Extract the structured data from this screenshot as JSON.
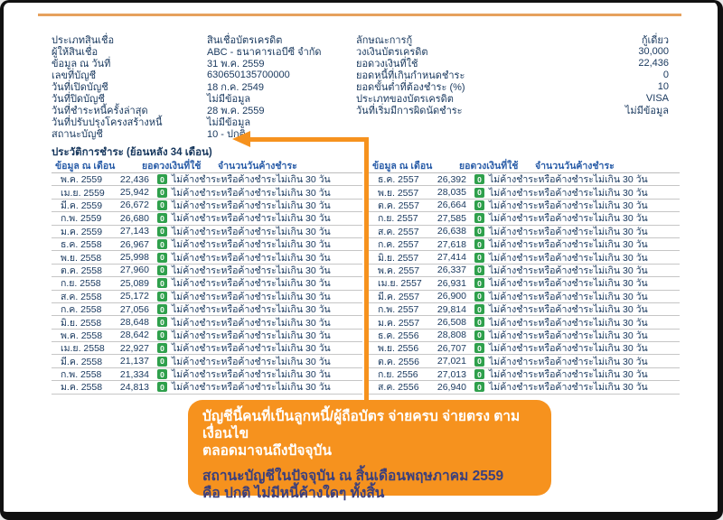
{
  "colors": {
    "accent_orange": "#F6921E",
    "rule_tan": "#E6A15D",
    "badge_green": "#2FA04C",
    "text_navy": "#17375D",
    "header_blue": "#2A5DA8",
    "callout_text_dark": "#3A3F7D"
  },
  "account_fields": {
    "left": [
      {
        "label": "ประเภทสินเชื่อ",
        "value": "สินเชื่อบัตรเครดิต"
      },
      {
        "label": "ผู้ให้สินเชื่อ",
        "value": "ABC - ธนาคารเอบีซี จำกัด"
      },
      {
        "label": "ข้อมูล ณ วันที่",
        "value": "31 พ.ค. 2559"
      },
      {
        "label": "เลขที่บัญชี",
        "value": "630650135700000"
      },
      {
        "label": "วันที่เปิดบัญชี",
        "value": "18 ก.ค. 2549"
      },
      {
        "label": "วันที่ปิดบัญชี",
        "value": "ไม่มีข้อมูล"
      },
      {
        "label": "วันที่ชำระหนี้ครั้งล่าสุด",
        "value": "28 พ.ค. 2559"
      },
      {
        "label": "วันที่ปรับปรุงโครงสร้างหนี้",
        "value": "ไม่มีข้อมูล"
      },
      {
        "label": "สถานะบัญชี",
        "value": "10 - ปกติ"
      }
    ],
    "right": [
      {
        "label": "ลักษณะการกู้",
        "value": "กู้เดี่ยว"
      },
      {
        "label": "วงเงินบัตรเครดิต",
        "value": "30,000"
      },
      {
        "label": "ยอดวงเงินที่ใช้",
        "value": "22,436"
      },
      {
        "label": "ยอดหนี้ที่เกินกำหนดชำระ",
        "value": "0"
      },
      {
        "label": "ยอดขั้นต่ำที่ต้องชำระ (%)",
        "value": "10"
      },
      {
        "label": "ประเภทของบัตรเครดิต",
        "value": "VISA"
      },
      {
        "label": "วันที่เริ่มมีการผิดนัดชำระ",
        "value": "ไม่มีข้อมูล"
      }
    ]
  },
  "history": {
    "title": "ประวัติการชำระ (ย้อนหลัง 34 เดือน)",
    "columns": [
      "ข้อมูล ณ เดือน",
      "ยอดวงเงินที่ใช้",
      "จำนวนวันค้างชำระ"
    ],
    "status_badge": "0",
    "status_text": "ไม่ค้างชำระหรือค้างชำระไม่เกิน 30 วัน",
    "left_rows": [
      {
        "month": "พ.ค. 2559",
        "amount": "22,436"
      },
      {
        "month": "เม.ย. 2559",
        "amount": "25,942"
      },
      {
        "month": "มี.ค. 2559",
        "amount": "26,672"
      },
      {
        "month": "ก.พ. 2559",
        "amount": "26,680"
      },
      {
        "month": "ม.ค. 2559",
        "amount": "27,143"
      },
      {
        "month": "ธ.ค. 2558",
        "amount": "26,967"
      },
      {
        "month": "พ.ย. 2558",
        "amount": "25,998"
      },
      {
        "month": "ต.ค. 2558",
        "amount": "27,960"
      },
      {
        "month": "ก.ย. 2558",
        "amount": "25,089"
      },
      {
        "month": "ส.ค. 2558",
        "amount": "25,172"
      },
      {
        "month": "ก.ค. 2558",
        "amount": "27,056"
      },
      {
        "month": "มิ.ย. 2558",
        "amount": "28,648"
      },
      {
        "month": "พ.ค. 2558",
        "amount": "28,642"
      },
      {
        "month": "เม.ย. 2558",
        "amount": "22,927"
      },
      {
        "month": "มี.ค. 2558",
        "amount": "21,137"
      },
      {
        "month": "ก.พ. 2558",
        "amount": "21,334"
      },
      {
        "month": "ม.ค. 2558",
        "amount": "24,813"
      }
    ],
    "right_rows": [
      {
        "month": "ธ.ค. 2557",
        "amount": "26,392"
      },
      {
        "month": "พ.ย. 2557",
        "amount": "28,035"
      },
      {
        "month": "ต.ค. 2557",
        "amount": "26,664"
      },
      {
        "month": "ก.ย. 2557",
        "amount": "27,585"
      },
      {
        "month": "ส.ค. 2557",
        "amount": "26,638"
      },
      {
        "month": "ก.ค. 2557",
        "amount": "27,618"
      },
      {
        "month": "มิ.ย. 2557",
        "amount": "27,414"
      },
      {
        "month": "พ.ค. 2557",
        "amount": "26,337"
      },
      {
        "month": "เม.ย. 2557",
        "amount": "26,931"
      },
      {
        "month": "มี.ค. 2557",
        "amount": "26,900"
      },
      {
        "month": "ก.พ. 2557",
        "amount": "29,814"
      },
      {
        "month": "ม.ค. 2557",
        "amount": "26,508"
      },
      {
        "month": "ธ.ค. 2556",
        "amount": "28,808"
      },
      {
        "month": "พ.ย. 2556",
        "amount": "26,707"
      },
      {
        "month": "ต.ค. 2556",
        "amount": "27,021"
      },
      {
        "month": "ก.ย. 2556",
        "amount": "27,013"
      },
      {
        "month": "ส.ค. 2556",
        "amount": "26,940"
      }
    ]
  },
  "callout": {
    "line1": "บัญชีนี้คนที่เป็นลูกหนี้/ผู้ถือบัตร จ่ายครบ จ่ายตรง ตามเงื่อนไข",
    "line2": "ตลอดมาจนถึงปัจจุบัน",
    "line3": "สถานะบัญชีในปัจจุบัน ณ สิ้นเดือนพฤษภาคม 2559",
    "line4": "คือ ปกติ ไม่มีหนี้ค้างใดๆ ทั้งสิ้น"
  }
}
